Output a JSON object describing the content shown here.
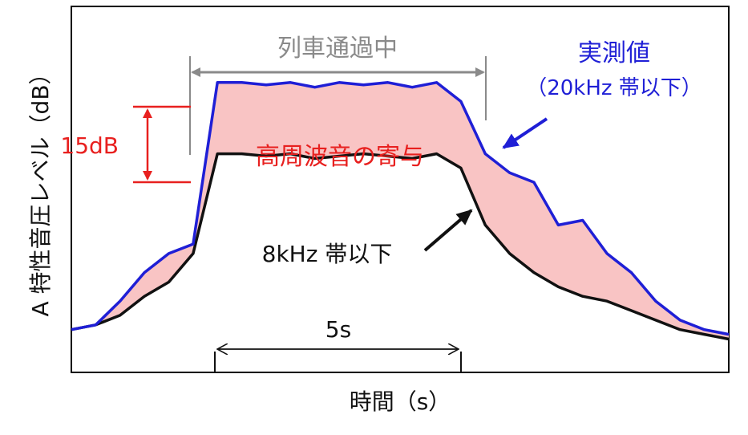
{
  "chart_data": {
    "type": "area",
    "xlabel": "時間（s）",
    "ylabel": "A 特性音圧レベル（dB）",
    "colors": {
      "measured": "#1f1fd6",
      "low_band": "#111111",
      "fill": "#f9c4c4",
      "annotation_red": "#e8201f",
      "annotation_gray": "#8a8a8a",
      "annotation_blue": "#1f1fd6"
    },
    "series": [
      {
        "name": "実測値（20kHz 帯以下）",
        "x": [
          0,
          0.5,
          1,
          1.5,
          2,
          2.5,
          3,
          3.5,
          4,
          4.5,
          5,
          5.5,
          6,
          6.5,
          7,
          7.5,
          8,
          8.5,
          9,
          9.5,
          10,
          10.5,
          11,
          11.5,
          12,
          12.5,
          13,
          13.5
        ],
        "values": [
          2,
          3,
          8,
          14,
          18,
          20,
          54,
          54,
          53.5,
          54,
          53,
          54,
          53.5,
          54,
          53,
          54,
          50,
          39,
          35,
          33,
          24,
          25,
          18,
          14,
          8,
          4,
          2,
          1
        ]
      },
      {
        "name": "8kHz 帯以下",
        "x": [
          0,
          0.5,
          1,
          1.5,
          2,
          2.5,
          3,
          3.5,
          4,
          4.5,
          5,
          5.5,
          6,
          6.5,
          7,
          7.5,
          8,
          8.5,
          9,
          9.5,
          10,
          10.5,
          11,
          11.5,
          12,
          12.5,
          13,
          13.5
        ],
        "values": [
          2,
          3,
          5,
          9,
          12,
          18,
          39,
          39,
          38.5,
          39,
          38,
          38.5,
          39,
          38.5,
          38,
          39,
          36,
          24,
          18,
          14,
          11,
          9,
          8,
          6,
          4,
          2,
          1,
          0
        ]
      }
    ],
    "xlim": [
      0,
      13.5
    ],
    "ylim": [
      -7,
      70
    ],
    "annotations": {
      "passing": "列車通過中",
      "contribution": "高周波音の寄与",
      "diff": "15dB",
      "measured_line1": "実測値",
      "measured_line2": "（20kHz 帯以下）",
      "low_band": "8kHz 帯以下",
      "scale": "5s"
    }
  }
}
